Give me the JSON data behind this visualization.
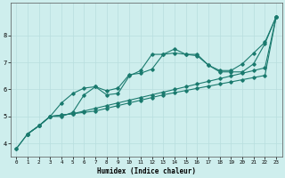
{
  "xlabel": "Humidex (Indice chaleur)",
  "bg_color": "#ceeeed",
  "line_color": "#1a7a6e",
  "grid_color": "#b8dede",
  "xlim": [
    -0.5,
    23.5
  ],
  "ylim": [
    3.5,
    9.2
  ],
  "yticks": [
    4,
    5,
    6,
    7,
    8
  ],
  "xticks": [
    0,
    1,
    2,
    3,
    4,
    5,
    6,
    7,
    8,
    9,
    10,
    11,
    12,
    13,
    14,
    15,
    16,
    17,
    18,
    19,
    20,
    21,
    22,
    23
  ],
  "line1_x": [
    0,
    1,
    2,
    3,
    4,
    5,
    6,
    7,
    8,
    9,
    10,
    11,
    12,
    13,
    14,
    15,
    16,
    17,
    18,
    19,
    20,
    21,
    22,
    23
  ],
  "line1_y": [
    3.8,
    4.35,
    4.65,
    5.0,
    5.05,
    5.1,
    5.15,
    5.2,
    5.3,
    5.4,
    5.5,
    5.6,
    5.7,
    5.8,
    5.88,
    5.96,
    6.04,
    6.12,
    6.2,
    6.28,
    6.36,
    6.44,
    6.52,
    8.7
  ],
  "line2_x": [
    0,
    1,
    2,
    3,
    4,
    5,
    6,
    7,
    8,
    9,
    10,
    11,
    12,
    13,
    14,
    15,
    16,
    17,
    18,
    19,
    20,
    21,
    22,
    23
  ],
  "line2_y": [
    3.8,
    4.35,
    4.65,
    5.0,
    5.05,
    5.1,
    5.2,
    5.3,
    5.4,
    5.5,
    5.6,
    5.7,
    5.8,
    5.9,
    6.0,
    6.1,
    6.2,
    6.3,
    6.4,
    6.5,
    6.6,
    6.7,
    6.8,
    8.7
  ],
  "line3_x": [
    1,
    2,
    3,
    4,
    5,
    6,
    7,
    8,
    9,
    10,
    11,
    12,
    13,
    14,
    15,
    16,
    17,
    18,
    19,
    20,
    21,
    22,
    23
  ],
  "line3_y": [
    4.35,
    4.65,
    5.0,
    5.5,
    5.85,
    6.05,
    6.1,
    5.8,
    5.85,
    6.5,
    6.7,
    7.3,
    7.3,
    7.5,
    7.3,
    7.3,
    6.9,
    6.7,
    6.7,
    6.95,
    7.35,
    7.75,
    8.7
  ],
  "line4_x": [
    1,
    2,
    3,
    4,
    5,
    6,
    7,
    8,
    9,
    10,
    11,
    12,
    13,
    14,
    15,
    16,
    17,
    18,
    19,
    20,
    21,
    22,
    23
  ],
  "line4_y": [
    4.35,
    4.65,
    5.0,
    5.0,
    5.15,
    5.8,
    6.1,
    5.95,
    6.05,
    6.55,
    6.6,
    6.75,
    7.3,
    7.35,
    7.3,
    7.25,
    6.9,
    6.65,
    6.65,
    6.65,
    6.95,
    7.7,
    8.7
  ]
}
